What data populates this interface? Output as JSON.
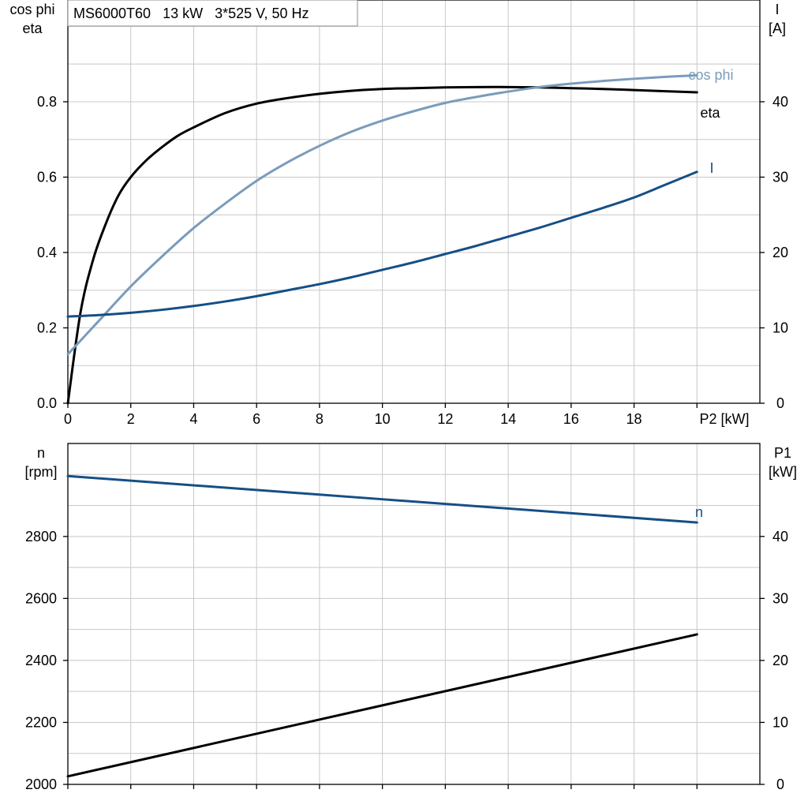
{
  "chart_data": [
    {
      "type": "line",
      "title": "MS6000T60   13 kW   3*525 V, 50 Hz",
      "xlabel": "P2 [kW]",
      "xlim": [
        0,
        22
      ],
      "xticks": [
        0,
        2,
        4,
        6,
        8,
        10,
        12,
        14,
        16,
        18
      ],
      "ylabel_left": [
        "cos phi",
        "eta"
      ],
      "ylim_left": [
        0,
        1.07
      ],
      "yticks_left": [
        "0.0",
        "0.2",
        "0.4",
        "0.6",
        "0.8"
      ],
      "ylabel_right": [
        "I",
        "[A]"
      ],
      "ylim_right": [
        0,
        53.5
      ],
      "yticks_right": [
        "0",
        "10",
        "20",
        "30",
        "40"
      ],
      "grid": true,
      "series": [
        {
          "name": "eta",
          "axis": "left",
          "color": "#000000",
          "x": [
            0,
            0.4,
            0.8,
            1.2,
            1.6,
            2,
            2.5,
            3,
            3.5,
            4,
            5,
            6,
            7,
            8,
            9,
            10,
            11,
            12,
            13,
            14,
            15,
            16,
            17,
            18,
            19,
            20
          ],
          "y": [
            0.0,
            0.24,
            0.38,
            0.475,
            0.55,
            0.6,
            0.645,
            0.68,
            0.71,
            0.732,
            0.77,
            0.795,
            0.81,
            0.821,
            0.829,
            0.834,
            0.836,
            0.838,
            0.839,
            0.839,
            0.838,
            0.836,
            0.834,
            0.831,
            0.828,
            0.825
          ]
        },
        {
          "name": "cos phi",
          "axis": "left",
          "color": "#7a9cbc",
          "x": [
            0,
            1,
            2,
            3,
            4,
            5,
            6,
            7,
            8,
            9,
            10,
            11,
            12,
            13,
            14,
            15,
            16,
            17,
            18,
            19,
            20
          ],
          "y": [
            0.13,
            0.22,
            0.31,
            0.39,
            0.465,
            0.53,
            0.59,
            0.64,
            0.683,
            0.72,
            0.75,
            0.775,
            0.797,
            0.813,
            0.827,
            0.839,
            0.848,
            0.855,
            0.861,
            0.866,
            0.87
          ]
        },
        {
          "name": "I",
          "axis": "right",
          "color": "#154f85",
          "x": [
            0,
            1,
            2,
            3,
            4,
            5,
            6,
            7,
            8,
            9,
            10,
            11,
            12,
            13,
            14,
            15,
            16,
            17,
            18,
            19,
            20
          ],
          "y": [
            11.5,
            11.7,
            12.0,
            12.4,
            12.9,
            13.5,
            14.2,
            15.0,
            15.8,
            16.7,
            17.7,
            18.7,
            19.8,
            20.9,
            22.1,
            23.3,
            24.6,
            25.9,
            27.3,
            29.0,
            30.7
          ]
        }
      ]
    },
    {
      "type": "line",
      "xlabel": "",
      "xlim": [
        0,
        22
      ],
      "ylabel_left": [
        "n",
        "[rpm]"
      ],
      "ylim_left": [
        2000,
        3100
      ],
      "yticks_left": [
        "2000",
        "2200",
        "2400",
        "2600",
        "2800"
      ],
      "ylabel_right": [
        "P1",
        "[kW]"
      ],
      "ylim_right": [
        0,
        55
      ],
      "yticks_right": [
        "0",
        "10",
        "20",
        "30",
        "40"
      ],
      "grid": true,
      "series": [
        {
          "name": "n",
          "axis": "left",
          "color": "#154f85",
          "x": [
            0,
            20
          ],
          "y": [
            2995,
            2845
          ]
        },
        {
          "name": "",
          "axis": "right",
          "color": "#000000",
          "x": [
            0,
            20
          ],
          "y": [
            1.3,
            24.2
          ]
        }
      ]
    }
  ]
}
